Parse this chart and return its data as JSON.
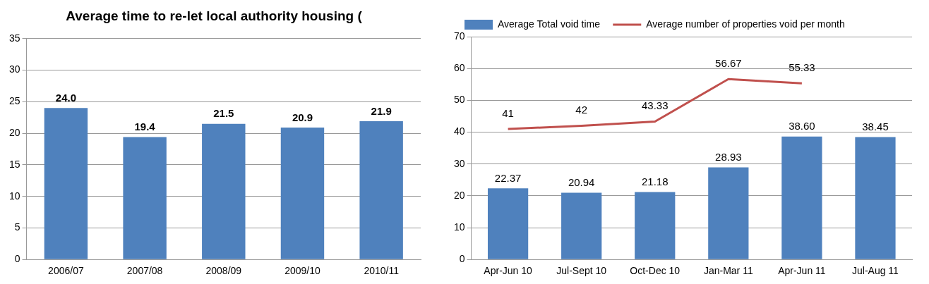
{
  "chart_data": [
    {
      "type": "bar",
      "title": "Average time to re-let local authority housing (",
      "categories": [
        "2006/07",
        "2007/08",
        "2008/09",
        "2009/10",
        "2010/11"
      ],
      "values": [
        24.0,
        19.4,
        21.5,
        20.9,
        21.9
      ],
      "value_labels": [
        "24.0",
        "19.4",
        "21.5",
        "20.9",
        "21.9"
      ],
      "color": "#4f81bd",
      "ylim": [
        0,
        35
      ],
      "yticks": [
        0,
        5,
        10,
        15,
        20,
        25,
        30,
        35
      ],
      "grid": "y",
      "legend": false
    },
    {
      "type": "bar",
      "categories": [
        "Apr-Jun 10",
        "Jul-Sept 10",
        "Oct-Dec 10",
        "Jan-Mar 11",
        "Apr-Jun 11",
        "Jul-Aug 11"
      ],
      "series": [
        {
          "name": "Average Total void time",
          "color": "#4f81bd",
          "values": [
            22.37,
            20.94,
            21.18,
            28.93,
            38.6,
            38.45
          ],
          "value_labels": [
            "22.37",
            "20.94",
            "21.18",
            "28.93",
            "38.60",
            "38.45"
          ]
        },
        {
          "name": "Average number of properties void per month",
          "type": "line",
          "color": "#c0504d",
          "values": [
            41,
            42,
            43.33,
            56.67,
            55.33,
            null
          ],
          "value_labels": [
            "41",
            "42",
            "43.33",
            "56.67",
            "55.33",
            null
          ]
        }
      ],
      "ylim": [
        0,
        70
      ],
      "yticks": [
        0,
        10,
        20,
        30,
        40,
        50,
        60,
        70
      ],
      "grid": "y",
      "legend": "top",
      "marker": "none"
    }
  ]
}
